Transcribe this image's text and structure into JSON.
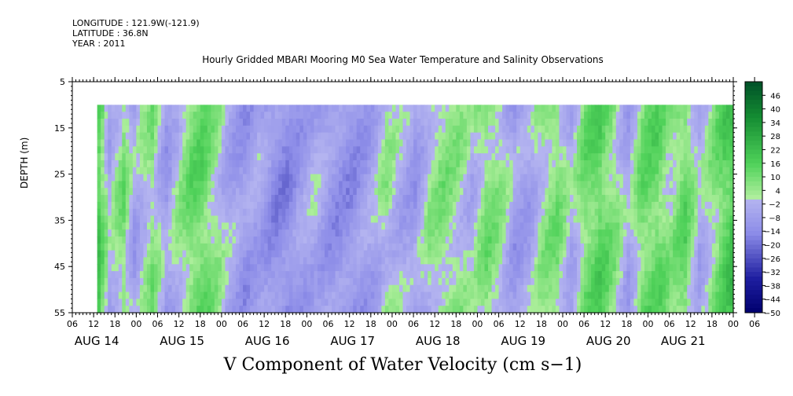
{
  "header": {
    "longitude": "LONGITUDE : 121.9W(-121.9)",
    "latitude": "LATITUDE : 36.8N",
    "year": "YEAR : 2011"
  },
  "chart_data": {
    "type": "heatmap",
    "title": "Hourly Gridded MBARI Mooring M0 Sea Water Temperature and Salinity Observations",
    "xlabel": "V Component of Water Velocity (cm s−1)",
    "ylabel": "DEPTH (m)",
    "y_axis": {
      "range": [
        5,
        55
      ],
      "inverted": true,
      "ticks": [
        "5",
        "15",
        "25",
        "35",
        "45",
        "55"
      ]
    },
    "x_axis": {
      "range_hours": [
        0,
        186
      ],
      "data_start_hours": 7,
      "hour_ticks": [
        "06",
        "12",
        "18",
        "00",
        "06",
        "12",
        "18",
        "00",
        "06",
        "12",
        "18",
        "00",
        "06",
        "12",
        "18",
        "00",
        "06",
        "12",
        "18",
        "00",
        "06",
        "12",
        "18",
        "00",
        "06",
        "12",
        "18",
        "00",
        "06",
        "12",
        "18",
        "00",
        "06"
      ],
      "day_labels": [
        "AUG 14",
        "AUG 15",
        "AUG 16",
        "AUG 17",
        "AUG 18",
        "AUG 19",
        "AUG 20",
        "AUG 21"
      ]
    },
    "data_depth_range": [
      10,
      55
    ],
    "colorbar": {
      "ticks": [
        "46",
        "40",
        "34",
        "28",
        "22",
        "16",
        "10",
        "4",
        "−2",
        "−8",
        "−14",
        "−20",
        "−26",
        "−32",
        "−38",
        "−44",
        "−50"
      ],
      "range": [
        -50,
        52
      ],
      "colors": {
        "negative_light": "#b4b4f0",
        "negative_mid": "#8c8ce8",
        "negative_dark": "#1e1ea0",
        "negative_min": "#00006e",
        "positive_light": "#b4f0a0",
        "positive_mid": "#50d25a",
        "positive_dark": "#148c32",
        "positive_max": "#005028"
      }
    },
    "bands": [
      {
        "hour": 7,
        "v": 16
      },
      {
        "hour": 10,
        "v": -3
      },
      {
        "hour": 14,
        "v": 8
      },
      {
        "hour": 17,
        "v": -6
      },
      {
        "hour": 22,
        "v": 6
      },
      {
        "hour": 26,
        "v": -8
      },
      {
        "hour": 30,
        "v": 3
      },
      {
        "hour": 33,
        "v": 10
      },
      {
        "hour": 36,
        "v": 12
      },
      {
        "hour": 40,
        "v": 4
      },
      {
        "hour": 43,
        "v": -4
      },
      {
        "hour": 48,
        "v": -10
      },
      {
        "hour": 52,
        "v": -6
      },
      {
        "hour": 56,
        "v": -12
      },
      {
        "hour": 60,
        "v": -14
      },
      {
        "hour": 64,
        "v": -8
      },
      {
        "hour": 68,
        "v": -4
      },
      {
        "hour": 72,
        "v": -10
      },
      {
        "hour": 78,
        "v": -12
      },
      {
        "hour": 84,
        "v": -6
      },
      {
        "hour": 88,
        "v": 3
      },
      {
        "hour": 92,
        "v": -4
      },
      {
        "hour": 96,
        "v": -8
      },
      {
        "hour": 100,
        "v": 2
      },
      {
        "hour": 104,
        "v": 6
      },
      {
        "hour": 108,
        "v": 4
      },
      {
        "hour": 112,
        "v": -2
      },
      {
        "hour": 116,
        "v": 8
      },
      {
        "hour": 120,
        "v": 4
      },
      {
        "hour": 124,
        "v": -8
      },
      {
        "hour": 128,
        "v": -6
      },
      {
        "hour": 132,
        "v": 4
      },
      {
        "hour": 136,
        "v": 8
      },
      {
        "hour": 140,
        "v": -4
      },
      {
        "hour": 144,
        "v": 10
      },
      {
        "hour": 148,
        "v": 14
      },
      {
        "hour": 152,
        "v": 6
      },
      {
        "hour": 156,
        "v": -6
      },
      {
        "hour": 160,
        "v": 10
      },
      {
        "hour": 164,
        "v": 12
      },
      {
        "hour": 168,
        "v": 4
      },
      {
        "hour": 172,
        "v": 12
      },
      {
        "hour": 176,
        "v": -4
      },
      {
        "hour": 180,
        "v": 6
      },
      {
        "hour": 183,
        "v": 14
      },
      {
        "hour": 186,
        "v": 20
      }
    ]
  }
}
